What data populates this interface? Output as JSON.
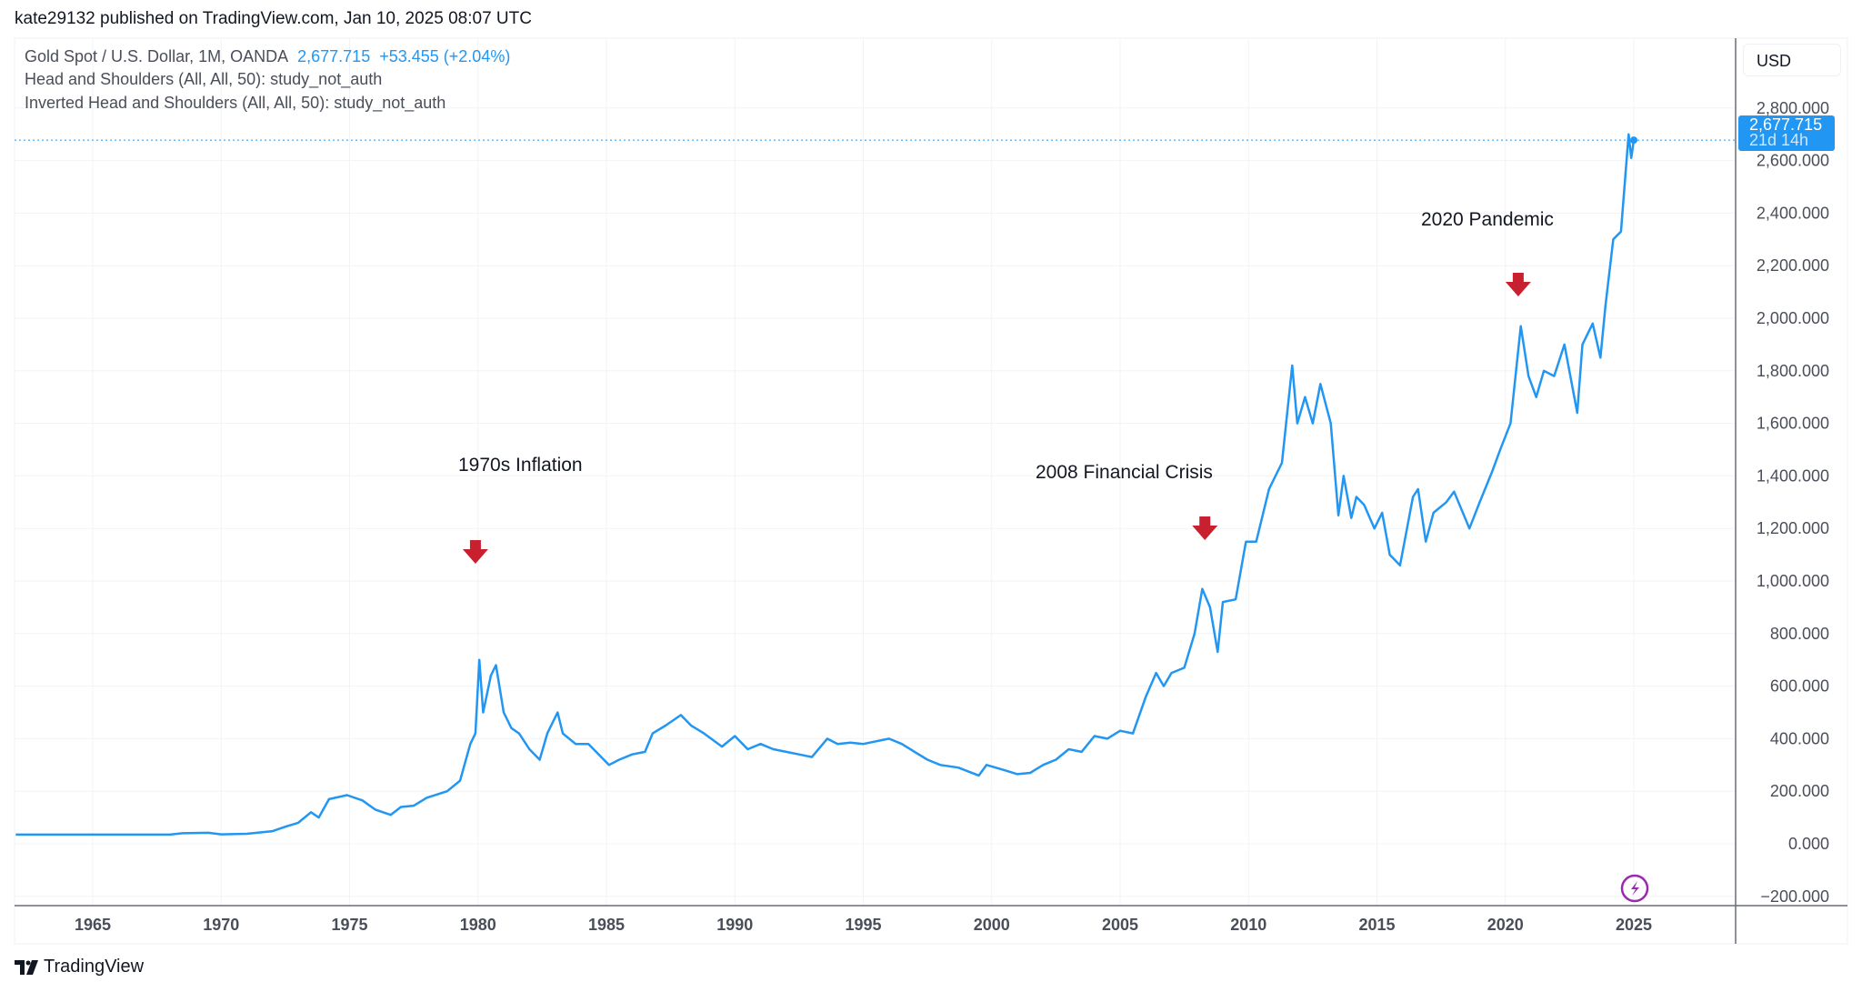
{
  "header": {
    "published": "kate29132 published on TradingView.com, Jan 10, 2025 08:07 UTC"
  },
  "legend": {
    "symbol": "Gold Spot / U.S. Dollar, 1M, OANDA",
    "price": "2,677.715",
    "change": "+53.455 (+2.04%)",
    "study1": "Head and Shoulders (All, All, 50): study_not_auth",
    "study2": "Inverted Head and Shoulders (All, All, 50): study_not_auth"
  },
  "currency": "USD",
  "price_label": {
    "value": "2,677.715",
    "countdown": "21d 14h"
  },
  "annotations": [
    {
      "text": "1970s Inflation",
      "arrow_year": 1979.9
    },
    {
      "text": "2008 Financial Crisis",
      "arrow_year": 2008.3
    },
    {
      "text": "2020 Pandemic",
      "arrow_year": 2020.5
    }
  ],
  "footer": {
    "logo": "TradingView"
  },
  "colors": {
    "line": "#2196f3",
    "arrow": "#c8202f",
    "lightning": "#9c27b0"
  },
  "chart_data": {
    "type": "line",
    "series": [
      {
        "x": [
          1962,
          1968,
          1968.5,
          1969.5,
          1970,
          1971,
          1972,
          1972.5,
          1973,
          1973.5,
          1973.8,
          1974.2,
          1974.9,
          1975.5,
          1976,
          1976.6,
          1977,
          1977.5,
          1978,
          1978.8,
          1979.3,
          1979.7,
          1979.9,
          1980.05,
          1980.2,
          1980.5,
          1980.7,
          1981,
          1981.3,
          1981.6,
          1982,
          1982.4,
          1982.7,
          1983.1,
          1983.3,
          1983.8,
          1984.3,
          1984.7,
          1985.1,
          1985.5,
          1986,
          1986.5,
          1986.8,
          1987.3,
          1987.9,
          1988.3,
          1988.8,
          1989.5,
          1990,
          1990.5,
          1991,
          1991.5,
          1992,
          1992.5,
          1993,
          1993.6,
          1994,
          1994.5,
          1995,
          1996,
          1996.5,
          1997,
          1997.5,
          1998,
          1998.7,
          1999.5,
          1999.8,
          2000.5,
          2001,
          2001.5,
          2002,
          2002.5,
          2003,
          2003.5,
          2004,
          2004.5,
          2005,
          2005.5,
          2006,
          2006.4,
          2006.7,
          2007,
          2007.5,
          2007.9,
          2008.2,
          2008.5,
          2008.8,
          2009,
          2009.5,
          2009.9,
          2010.3,
          2010.8,
          2011.3,
          2011.7,
          2011.9,
          2012.2,
          2012.5,
          2012.8,
          2013.2,
          2013.5,
          2013.7,
          2014,
          2014.2,
          2014.5,
          2014.9,
          2015.2,
          2015.5,
          2015.9,
          2016.4,
          2016.6,
          2016.9,
          2017.2,
          2017.7,
          2018,
          2018.6,
          2019,
          2019.5,
          2019.8,
          2020.2,
          2020.6,
          2020.9,
          2021.2,
          2021.5,
          2021.9,
          2022.3,
          2022.8,
          2023,
          2023.4,
          2023.7,
          2023.9,
          2024.2,
          2024.5,
          2024.8,
          2024.9,
          2025.0
        ],
        "y": [
          35,
          35,
          40,
          42,
          36,
          38,
          48,
          65,
          80,
          120,
          100,
          170,
          185,
          165,
          130,
          110,
          140,
          145,
          175,
          200,
          240,
          380,
          420,
          700,
          500,
          640,
          680,
          500,
          440,
          420,
          360,
          320,
          420,
          500,
          420,
          380,
          380,
          340,
          300,
          320,
          340,
          350,
          420,
          450,
          490,
          450,
          420,
          370,
          410,
          360,
          380,
          360,
          350,
          340,
          330,
          400,
          380,
          385,
          380,
          400,
          380,
          350,
          320,
          300,
          290,
          260,
          300,
          280,
          265,
          270,
          300,
          320,
          360,
          350,
          410,
          400,
          430,
          420,
          560,
          650,
          600,
          650,
          670,
          800,
          970,
          900,
          730,
          920,
          930,
          1150,
          1150,
          1350,
          1450,
          1820,
          1600,
          1700,
          1600,
          1750,
          1600,
          1250,
          1400,
          1240,
          1320,
          1290,
          1200,
          1260,
          1100,
          1060,
          1320,
          1350,
          1150,
          1260,
          1300,
          1340,
          1200,
          1300,
          1420,
          1500,
          1600,
          1970,
          1780,
          1700,
          1800,
          1780,
          1900,
          1640,
          1900,
          1980,
          1850,
          2050,
          2300,
          2330,
          2700,
          2610,
          2677.715
        ]
      }
    ],
    "xticks": [
      "1965",
      "1970",
      "1975",
      "1980",
      "1985",
      "1990",
      "1995",
      "2000",
      "2005",
      "2010",
      "2015",
      "2020",
      "2025"
    ],
    "yticks": [
      "2,800.000",
      "2,600.000",
      "2,400.000",
      "2,200.000",
      "2,000.000",
      "1,800.000",
      "1,600.000",
      "1,400.000",
      "1,200.000",
      "1,000.000",
      "800.000",
      "600.000",
      "400.000",
      "200.000",
      "0.000",
      "−200.000"
    ],
    "ylim": [
      -250,
      2950
    ],
    "last_value": 2677.715,
    "grid": true
  }
}
